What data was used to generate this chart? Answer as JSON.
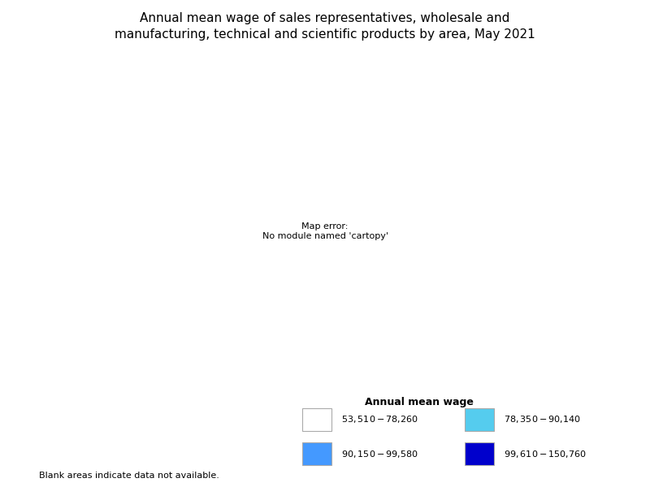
{
  "title": "Annual mean wage of sales representatives, wholesale and\nmanufacturing, technical and scientific products by area, May 2021",
  "title_fontsize": 11,
  "legend_title": "Annual mean wage",
  "legend_entries": [
    {
      "label": "$53,510 - $78,260",
      "color": "#ffffff",
      "edgecolor": "#aaaaaa"
    },
    {
      "label": "$78,350 - $90,140",
      "color": "#55ccee",
      "edgecolor": "#aaaaaa"
    },
    {
      "label": "$90,150 - $99,580",
      "color": "#4499ff",
      "edgecolor": "#aaaaaa"
    },
    {
      "label": "$99,610 - $150,760",
      "color": "#0000cc",
      "edgecolor": "#aaaaaa"
    }
  ],
  "blank_note": "Blank areas indicate data not available.",
  "background_color": "#ffffff",
  "state_colors": {
    "Washington": "#0000cc",
    "Oregon": "#0000cc",
    "California": "#0000cc",
    "Nevada": "#55ccee",
    "Idaho": "#4499ff",
    "Montana": "#ffffff",
    "Wyoming": "#ffffff",
    "Utah": "#ffffff",
    "Arizona": "#4499ff",
    "Colorado": "#4499ff",
    "New Mexico": "#4499ff",
    "North Dakota": "#ffffff",
    "South Dakota": "#ffffff",
    "Nebraska": "#4499ff",
    "Kansas": "#4499ff",
    "Oklahoma": "#4499ff",
    "Texas": "#0000cc",
    "Minnesota": "#0000cc",
    "Iowa": "#4499ff",
    "Missouri": "#4499ff",
    "Arkansas": "#ffffff",
    "Louisiana": "#4499ff",
    "Wisconsin": "#0000cc",
    "Illinois": "#0000cc",
    "Michigan": "#0000cc",
    "Indiana": "#4499ff",
    "Ohio": "#0000cc",
    "Kentucky": "#4499ff",
    "Tennessee": "#4499ff",
    "Mississippi": "#ffffff",
    "Alabama": "#ffffff",
    "Georgia": "#4499ff",
    "Florida": "#55ccee",
    "South Carolina": "#55ccee",
    "North Carolina": "#4499ff",
    "Virginia": "#0000cc",
    "West Virginia": "#ffffff",
    "Maryland": "#0000cc",
    "Delaware": "#4499ff",
    "New Jersey": "#0000cc",
    "Pennsylvania": "#0000cc",
    "New York": "#0000cc",
    "Connecticut": "#0000cc",
    "Rhode Island": "#0000cc",
    "Massachusetts": "#0000cc",
    "Vermont": "#55ccee",
    "New Hampshire": "#0000cc",
    "Maine": "#0000cc",
    "Alaska": "#55ccee",
    "Hawaii": "#55ccee"
  }
}
